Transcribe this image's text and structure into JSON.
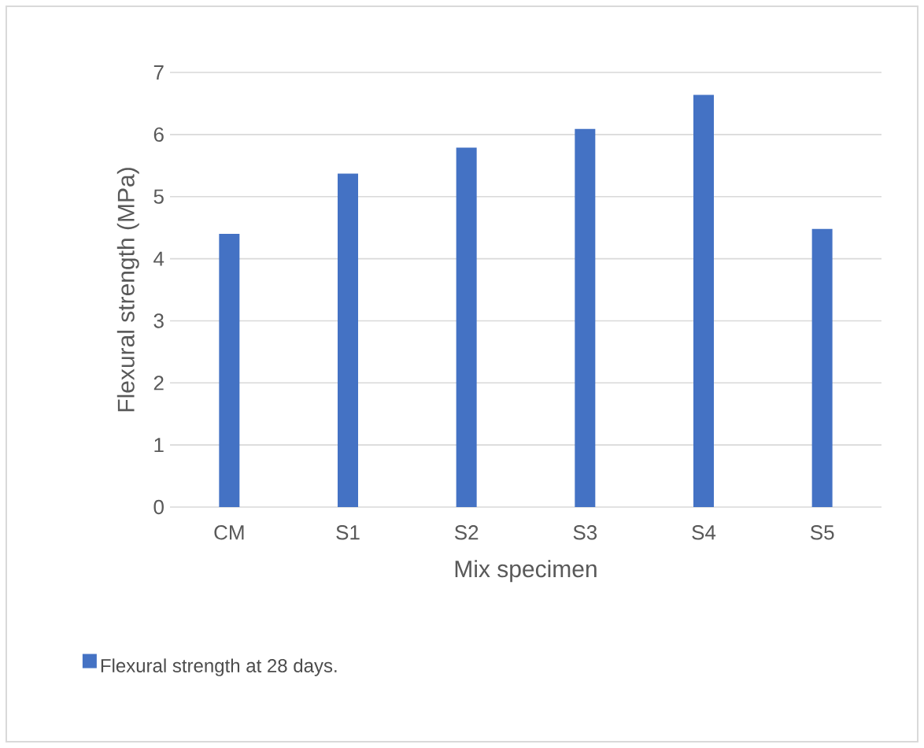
{
  "chart_data": {
    "type": "bar",
    "xlabel": "Mix specimen",
    "ylabel": "Flexural strength (MPa)",
    "categories": [
      "CM",
      "S1",
      "S2",
      "S3",
      "S4",
      "S5"
    ],
    "series": [
      {
        "name": "Flexural strength at 28 days.",
        "color": "#4472c4",
        "values": [
          4.4,
          5.37,
          5.79,
          6.09,
          6.64,
          4.48
        ]
      }
    ],
    "ylim": [
      0,
      7
    ],
    "yticks": [
      0,
      1,
      2,
      3,
      4,
      5,
      6,
      7
    ],
    "grid": "y",
    "legend": "bottom left"
  }
}
